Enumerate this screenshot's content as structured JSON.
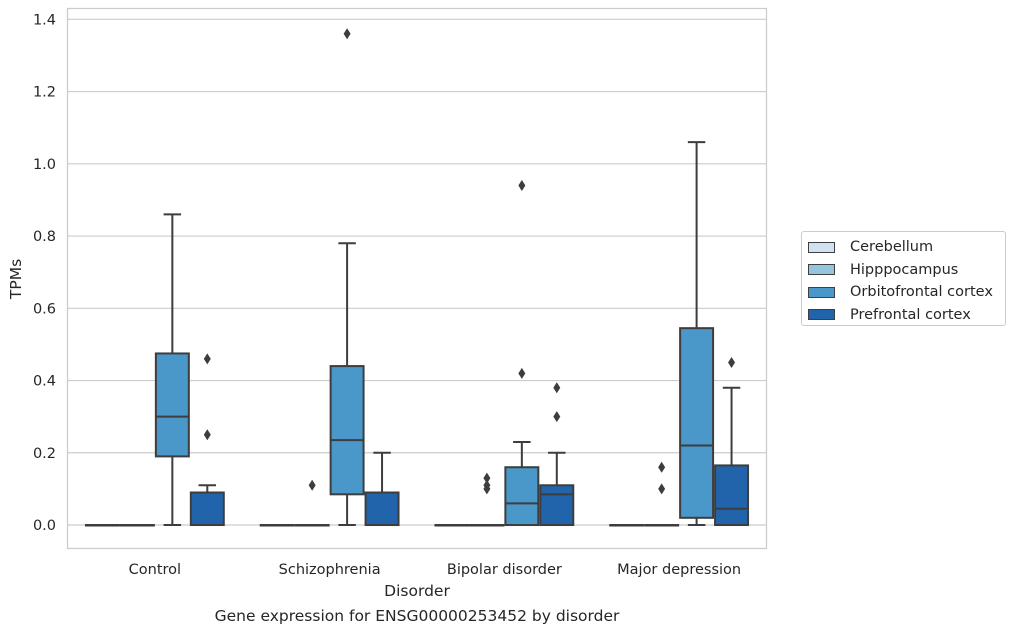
{
  "chart_data": {
    "type": "box",
    "title": "",
    "caption": "Gene expression for ENSG00000253452 by disorder",
    "xlabel": "Disorder",
    "ylabel": "TPMs",
    "ylim": [
      -0.065,
      1.43
    ],
    "yticks": [
      "0.0",
      "0.2",
      "0.4",
      "0.6",
      "0.8",
      "1.0",
      "1.2",
      "1.4"
    ],
    "categories": [
      "Control",
      "Schizophrenia",
      "Bipolar disorder",
      "Major depression"
    ],
    "grid": true,
    "legend_position": "right",
    "series": [
      {
        "name": "Cerebellum",
        "color": "#d0e1f2",
        "boxes": [
          {
            "q1": 0,
            "median": 0,
            "q3": 0,
            "whisker_low": 0,
            "whisker_high": 0,
            "outliers": []
          },
          {
            "q1": 0,
            "median": 0,
            "q3": 0,
            "whisker_low": 0,
            "whisker_high": 0,
            "outliers": []
          },
          {
            "q1": 0,
            "median": 0,
            "q3": 0,
            "whisker_low": 0,
            "whisker_high": 0,
            "outliers": []
          },
          {
            "q1": 0,
            "median": 0,
            "q3": 0,
            "whisker_low": 0,
            "whisker_high": 0,
            "outliers": []
          }
        ]
      },
      {
        "name": "Hipppocampus",
        "color": "#94c4df",
        "boxes": [
          {
            "q1": 0,
            "median": 0,
            "q3": 0,
            "whisker_low": 0,
            "whisker_high": 0,
            "outliers": []
          },
          {
            "q1": 0,
            "median": 0,
            "q3": 0,
            "whisker_low": 0,
            "whisker_high": 0,
            "outliers": [
              0.11
            ]
          },
          {
            "q1": 0,
            "median": 0,
            "q3": 0,
            "whisker_low": 0,
            "whisker_high": 0,
            "outliers": [
              0.13,
              0.11,
              0.1
            ]
          },
          {
            "q1": 0,
            "median": 0,
            "q3": 0,
            "whisker_low": 0,
            "whisker_high": 0,
            "outliers": [
              0.1,
              0.16
            ]
          }
        ]
      },
      {
        "name": "Orbitofrontal cortex",
        "color": "#4a98c9",
        "boxes": [
          {
            "q1": 0.19,
            "median": 0.3,
            "q3": 0.475,
            "whisker_low": 0,
            "whisker_high": 0.86,
            "outliers": []
          },
          {
            "q1": 0.085,
            "median": 0.235,
            "q3": 0.44,
            "whisker_low": 0,
            "whisker_high": 0.78,
            "outliers": [
              1.36
            ]
          },
          {
            "q1": 0,
            "median": 0.06,
            "q3": 0.16,
            "whisker_low": 0,
            "whisker_high": 0.23,
            "outliers": [
              0.42,
              0.94
            ]
          },
          {
            "q1": 0.02,
            "median": 0.22,
            "q3": 0.545,
            "whisker_low": 0,
            "whisker_high": 1.06,
            "outliers": []
          }
        ]
      },
      {
        "name": "Prefrontal cortex",
        "color": "#2164ab",
        "boxes": [
          {
            "q1": 0,
            "median": 0,
            "q3": 0.09,
            "whisker_low": 0,
            "whisker_high": 0.11,
            "outliers": [
              0.25,
              0.46
            ]
          },
          {
            "q1": 0,
            "median": 0,
            "q3": 0.09,
            "whisker_low": 0,
            "whisker_high": 0.2,
            "outliers": []
          },
          {
            "q1": 0,
            "median": 0.085,
            "q3": 0.11,
            "whisker_low": 0,
            "whisker_high": 0.2,
            "outliers": [
              0.3,
              0.38
            ]
          },
          {
            "q1": 0,
            "median": 0.045,
            "q3": 0.165,
            "whisker_low": 0,
            "whisker_high": 0.38,
            "outliers": [
              0.45
            ]
          }
        ]
      }
    ]
  }
}
